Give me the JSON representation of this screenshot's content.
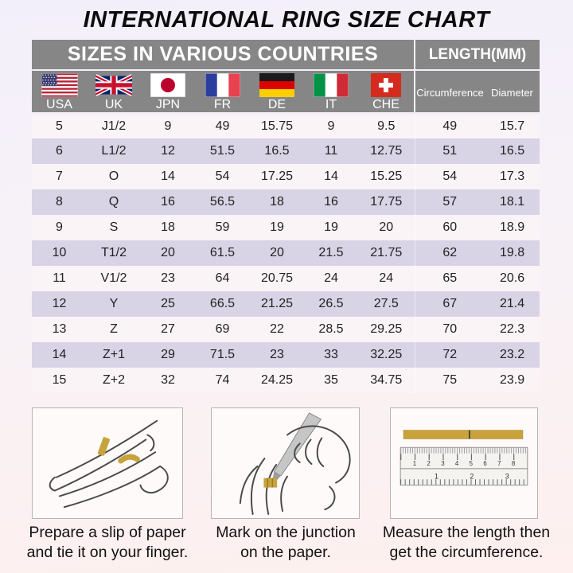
{
  "title": "INTERNATIONAL RING SIZE CHART",
  "table": {
    "header_left": "SIZES IN VARIOUS COUNTRIES",
    "header_right": "LENGTH(MM)",
    "countries": [
      {
        "code": "USA",
        "flag": "usa-flag"
      },
      {
        "code": "UK",
        "flag": "uk-flag"
      },
      {
        "code": "JPN",
        "flag": "japan-flag"
      },
      {
        "code": "FR",
        "flag": "france-flag"
      },
      {
        "code": "DE",
        "flag": "germany-flag"
      },
      {
        "code": "IT",
        "flag": "italy-flag"
      },
      {
        "code": "CHE",
        "flag": "switzerland-flag"
      }
    ],
    "length_columns": [
      "Circumference",
      "Diameter"
    ],
    "rows": [
      [
        "5",
        "J1/2",
        "9",
        "49",
        "15.75",
        "9",
        "9.5",
        "49",
        "15.7"
      ],
      [
        "6",
        "L1/2",
        "12",
        "51.5",
        "16.5",
        "11",
        "12.75",
        "51",
        "16.5"
      ],
      [
        "7",
        "O",
        "14",
        "54",
        "17.25",
        "14",
        "15.25",
        "54",
        "17.3"
      ],
      [
        "8",
        "Q",
        "16",
        "56.5",
        "18",
        "16",
        "17.75",
        "57",
        "18.1"
      ],
      [
        "9",
        "S",
        "18",
        "59",
        "19",
        "19",
        "20",
        "60",
        "18.9"
      ],
      [
        "10",
        "T1/2",
        "20",
        "61.5",
        "20",
        "21.5",
        "21.75",
        "62",
        "19.8"
      ],
      [
        "11",
        "V1/2",
        "23",
        "64",
        "20.75",
        "24",
        "24",
        "65",
        "20.6"
      ],
      [
        "12",
        "Y",
        "25",
        "66.5",
        "21.25",
        "26.5",
        "27.5",
        "67",
        "21.4"
      ],
      [
        "13",
        "Z",
        "27",
        "69",
        "22",
        "28.5",
        "29.25",
        "70",
        "22.3"
      ],
      [
        "14",
        "Z+1",
        "29",
        "71.5",
        "23",
        "33",
        "32.25",
        "72",
        "23.2"
      ],
      [
        "15",
        "Z+2",
        "32",
        "74",
        "24.25",
        "35",
        "34.75",
        "75",
        "23.9"
      ]
    ]
  },
  "steps": [
    {
      "illustration": "hand-with-paper-strip",
      "caption_line1": "Prepare a slip of paper",
      "caption_line2": "and tie it on your finger."
    },
    {
      "illustration": "pen-marking-junction",
      "caption_line1": "Mark on the junction",
      "caption_line2": "on the paper."
    },
    {
      "illustration": "ruler-measuring-strip",
      "caption_line1": "Measure the length then",
      "caption_line2": "get the circumference."
    }
  ],
  "ruler": {
    "top_numbers": [
      "1",
      "2",
      "3",
      "4",
      "5",
      "6",
      "7",
      "8"
    ],
    "bottom_numbers": [
      "1",
      "2",
      "3"
    ]
  },
  "colors": {
    "header_gray": "#868686",
    "row_light": "#faf4f7",
    "row_lavender": "#d9d3e6",
    "paper_strip_gold": "#c7a33b",
    "header_text": "#ffffff",
    "title_text": "#0c0c0c"
  }
}
